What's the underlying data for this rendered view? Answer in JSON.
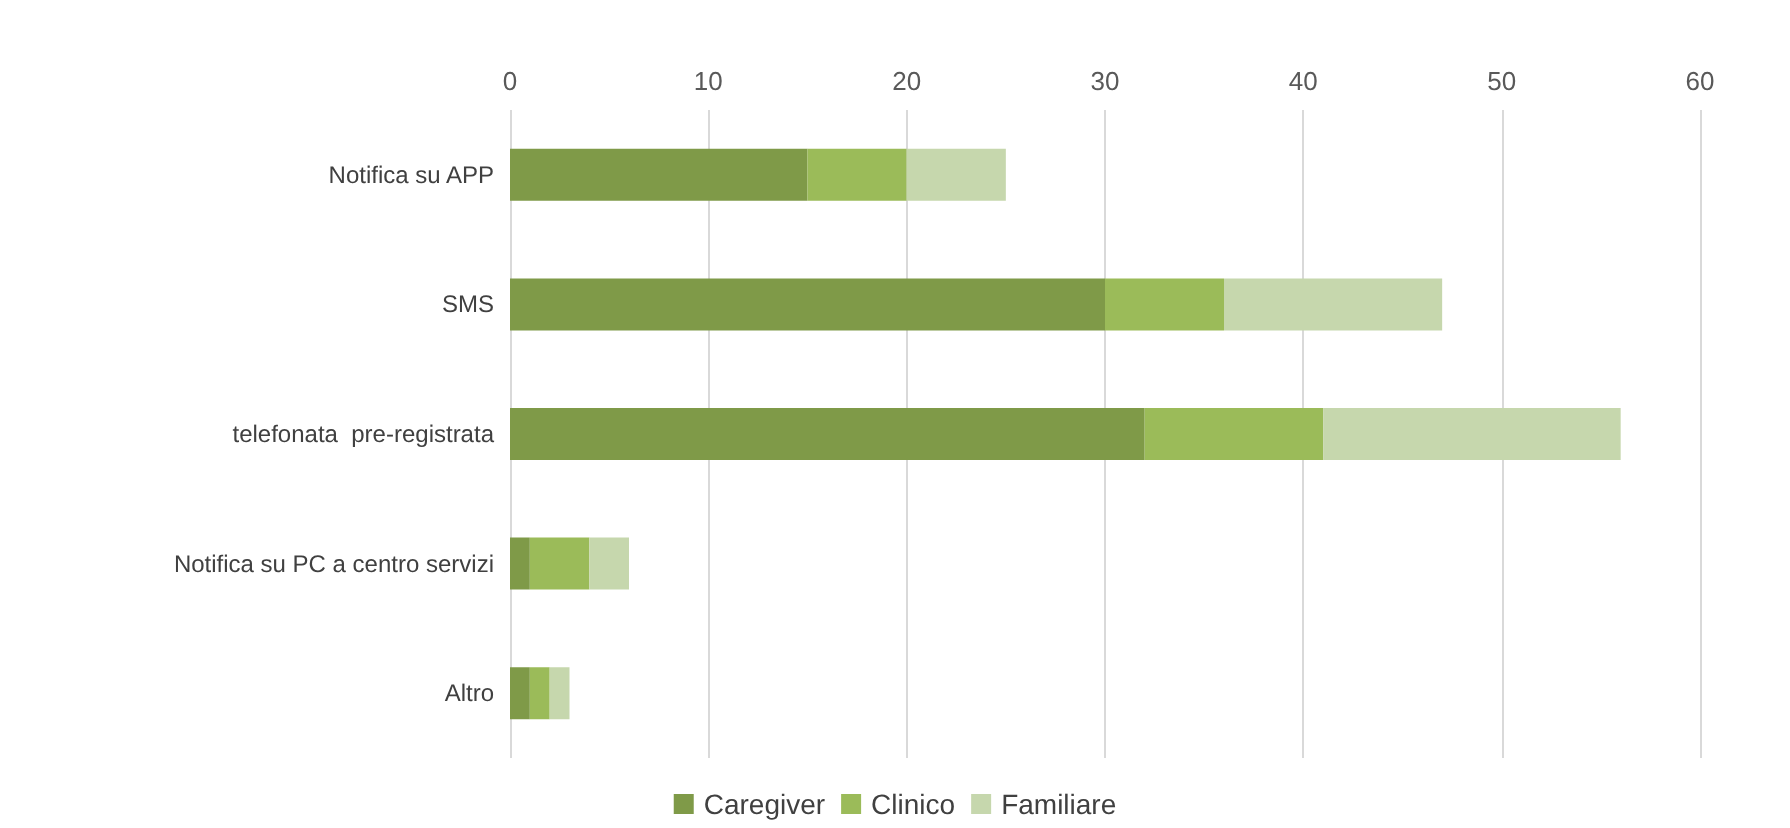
{
  "chart_data": {
    "type": "bar",
    "orientation": "horizontal",
    "stacked": true,
    "categories": [
      "Notifica su APP",
      "SMS",
      "telefonata  pre-registrata",
      "Notifica su PC a centro servizi",
      "Altro"
    ],
    "series": [
      {
        "name": "Caregiver",
        "color": "#7f9a48",
        "values": [
          15,
          30,
          32,
          1,
          1
        ]
      },
      {
        "name": "Clinico",
        "color": "#9bbb59",
        "values": [
          5,
          6,
          9,
          3,
          1
        ]
      },
      {
        "name": "Familiare",
        "color": "#c6d7ad",
        "values": [
          5,
          11,
          15,
          2,
          1
        ]
      }
    ],
    "xlim": [
      0,
      60
    ],
    "xticks": [
      0,
      10,
      20,
      30,
      40,
      50,
      60
    ],
    "grid": "x",
    "legend": "bottom"
  }
}
